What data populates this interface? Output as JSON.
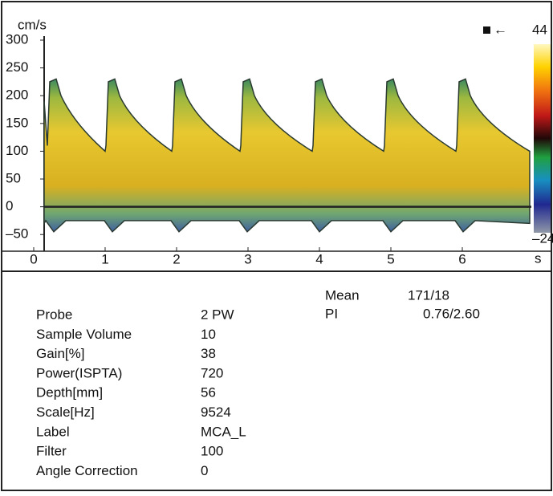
{
  "spectrum": {
    "y_unit": "cm/s",
    "x_unit": "s",
    "ylim": [
      -80,
      300
    ],
    "yticks": [
      300,
      250,
      200,
      150,
      100,
      50,
      0,
      {
        "value": -50,
        "label": "–50"
      }
    ],
    "xlim": [
      0,
      7
    ],
    "xticks": [
      0,
      1,
      2,
      3,
      4,
      5,
      6
    ],
    "colorbar": {
      "max": "44",
      "min": "–24"
    }
  },
  "measurements": [
    {
      "label": "Mean",
      "value": "171/18"
    },
    {
      "label": "PI",
      "value": "0.76/2.60"
    }
  ],
  "parameters": [
    [
      "Probe",
      "2 PW"
    ],
    [
      "Sample Volume",
      "10"
    ],
    [
      "Gain[%]",
      "38"
    ],
    [
      "Power(ISPTA)",
      "720"
    ],
    [
      "Depth[mm]",
      "56"
    ],
    [
      "Scale[Hz]",
      "9524"
    ],
    [
      "Label",
      "MCA_L"
    ],
    [
      "Filter",
      "100"
    ],
    [
      "Angle Correction",
      "0"
    ]
  ]
}
